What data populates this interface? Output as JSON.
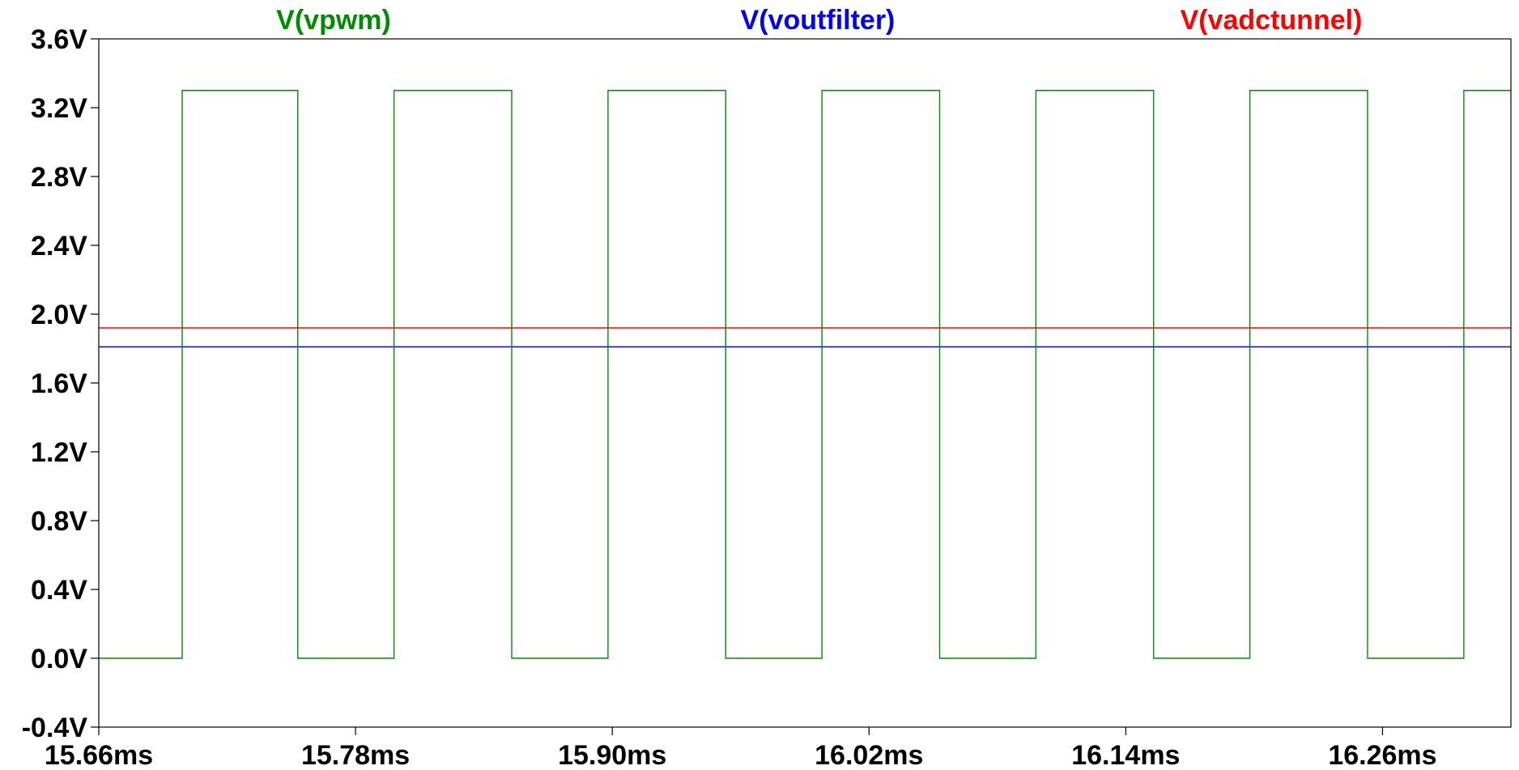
{
  "chart_data": {
    "type": "line",
    "xlim": [
      15.66,
      16.32
    ],
    "ylim": [
      -0.4,
      3.6
    ],
    "x_ticks": [
      15.66,
      15.78,
      15.9,
      16.02,
      16.14,
      16.26
    ],
    "x_tick_labels": [
      "15.66ms",
      "15.78ms",
      "15.90ms",
      "16.02ms",
      "16.14ms",
      "16.26ms"
    ],
    "y_ticks": [
      -0.4,
      0.0,
      0.4,
      0.8,
      1.2,
      1.6,
      2.0,
      2.4,
      2.8,
      3.2,
      3.6
    ],
    "y_tick_labels": [
      "-0.4V",
      "0.0V",
      "0.4V",
      "0.8V",
      "1.2V",
      "1.6V",
      "2.0V",
      "2.4V",
      "2.8V",
      "3.2V",
      "3.6V"
    ],
    "grid": false,
    "legend_placement": "top",
    "series": [
      {
        "name": "V(vpwm)",
        "color": "#008c00",
        "x": [
          15.66,
          15.699,
          15.699,
          15.753,
          15.753,
          15.798,
          15.798,
          15.853,
          15.853,
          15.898,
          15.898,
          15.953,
          15.953,
          15.998,
          15.998,
          16.053,
          16.053,
          16.098,
          16.098,
          16.153,
          16.153,
          16.198,
          16.198,
          16.253,
          16.253,
          16.298,
          16.298,
          16.32
        ],
        "y": [
          0,
          0,
          3.3,
          3.3,
          0,
          0,
          3.3,
          3.3,
          0,
          0,
          3.3,
          3.3,
          0,
          0,
          3.3,
          3.3,
          0,
          0,
          3.3,
          3.3,
          0,
          0,
          3.3,
          3.3,
          0,
          0,
          3.3,
          3.3
        ]
      },
      {
        "name": "V(voutfilter)",
        "color": "#0000ff",
        "x": [
          15.66,
          16.32
        ],
        "y": [
          1.81,
          1.81
        ]
      },
      {
        "name": "V(vadctunnel)",
        "color": "#ff0000",
        "x": [
          15.66,
          16.32
        ],
        "y": [
          1.92,
          1.92
        ]
      }
    ]
  }
}
